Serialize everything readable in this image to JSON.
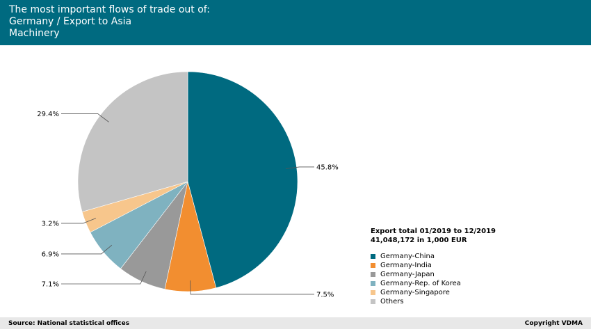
{
  "header": {
    "line1": "The most important flows of trade out of:",
    "line2": "Germany / Export to Asia",
    "line3": "Machinery",
    "background": "#006a80"
  },
  "legend": {
    "title_line1": "Export total 01/2019 to 12/2019",
    "title_line2": "41,048,172 in 1,000 EUR"
  },
  "footer": {
    "source": "Source: National statistical offices",
    "copyright": "Copyright VDMA"
  },
  "chart_data": {
    "type": "pie",
    "slices": [
      {
        "label": "Germany-China",
        "value": 45.8,
        "display": "45.8%",
        "color": "#006a80"
      },
      {
        "label": "Germany-India",
        "value": 7.5,
        "display": "7.5%",
        "color": "#f28e30"
      },
      {
        "label": "Germany-Japan",
        "value": 7.1,
        "display": "7.1%",
        "color": "#999999"
      },
      {
        "label": "Germany-Rep. of Korea",
        "value": 6.9,
        "display": "6.9%",
        "color": "#7fb2c0"
      },
      {
        "label": "Germany-Singapore",
        "value": 3.2,
        "display": "3.2%",
        "color": "#f7c68c"
      },
      {
        "label": "Others",
        "value": 29.4,
        "display": "29.4%",
        "color": "#c4c4c4"
      }
    ],
    "legend_placement": "bottom-right"
  }
}
